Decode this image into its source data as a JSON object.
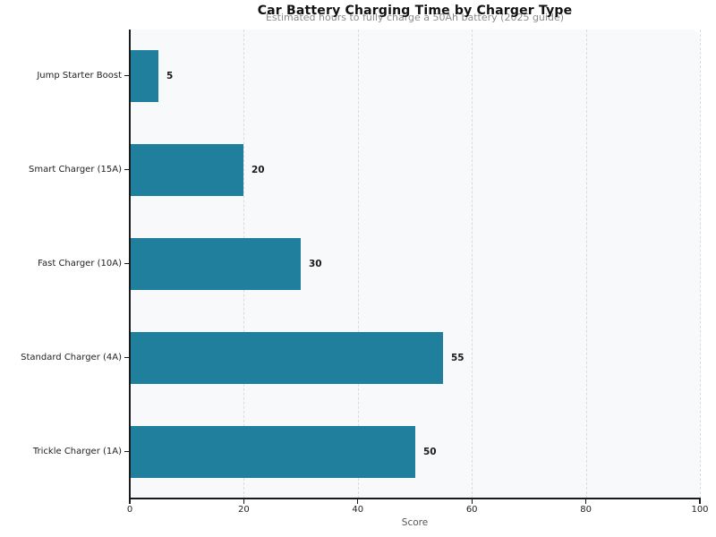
{
  "chart_data": {
    "type": "bar",
    "orientation": "horizontal",
    "title": "Car Battery Charging Time by Charger Type",
    "subtitle": "Estimated hours to fully charge a 50Ah battery (2025 guide)",
    "xlabel": "Score",
    "categories": [
      "Jump Starter Boost",
      "Smart Charger (15A)",
      "Fast Charger (10A)",
      "Standard Charger (4A)",
      "Trickle Charger (1A)"
    ],
    "values": [
      5,
      20,
      30,
      55,
      50
    ],
    "value_labels": [
      "5",
      "20",
      "30",
      "55",
      "50"
    ],
    "xlim": [
      0,
      100
    ],
    "xticks": [
      0,
      20,
      40,
      60,
      80,
      100
    ],
    "grid": "vertical-dashed",
    "legend": "none",
    "bar_color": "#217f9e",
    "plot_background": "#f8f9fa",
    "figure_background": "#ffffff"
  }
}
